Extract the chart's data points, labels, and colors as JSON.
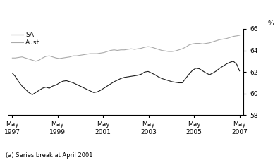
{
  "ylim": [
    58,
    66
  ],
  "yticks": [
    58,
    60,
    62,
    64,
    66
  ],
  "xlim": [
    1997.2,
    2007.55
  ],
  "xtick_positions": [
    1997.37,
    1999.37,
    2001.37,
    2003.37,
    2005.37,
    2007.37
  ],
  "xtick_labels": [
    "May\n1997",
    "May\n1999",
    "May\n2001",
    "May\n2003",
    "May\n2005",
    "May\n2007"
  ],
  "legend_entries": [
    "SA",
    "Aust."
  ],
  "sa_color": "#1a1a1a",
  "aust_color": "#aaaaaa",
  "background_color": "#ffffff",
  "footnote": "(a) Series break at April 2001",
  "percent_label": "%",
  "sa_data": [
    [
      1997.37,
      61.9
    ],
    [
      1997.5,
      61.6
    ],
    [
      1997.65,
      61.1
    ],
    [
      1997.8,
      60.7
    ],
    [
      1997.95,
      60.4
    ],
    [
      1998.1,
      60.1
    ],
    [
      1998.25,
      59.9
    ],
    [
      1998.4,
      60.1
    ],
    [
      1998.55,
      60.3
    ],
    [
      1998.7,
      60.5
    ],
    [
      1998.85,
      60.6
    ],
    [
      1999.0,
      60.5
    ],
    [
      1999.15,
      60.7
    ],
    [
      1999.3,
      60.8
    ],
    [
      1999.45,
      61.0
    ],
    [
      1999.6,
      61.15
    ],
    [
      1999.75,
      61.2
    ],
    [
      1999.9,
      61.1
    ],
    [
      2000.05,
      61.0
    ],
    [
      2000.2,
      60.85
    ],
    [
      2000.35,
      60.7
    ],
    [
      2000.5,
      60.55
    ],
    [
      2000.65,
      60.4
    ],
    [
      2000.8,
      60.25
    ],
    [
      2000.95,
      60.1
    ],
    [
      2001.1,
      60.15
    ],
    [
      2001.25,
      60.3
    ],
    [
      2001.4,
      60.5
    ],
    [
      2001.55,
      60.7
    ],
    [
      2001.7,
      60.9
    ],
    [
      2001.85,
      61.1
    ],
    [
      2002.0,
      61.25
    ],
    [
      2002.15,
      61.4
    ],
    [
      2002.3,
      61.5
    ],
    [
      2002.45,
      61.55
    ],
    [
      2002.6,
      61.6
    ],
    [
      2002.75,
      61.65
    ],
    [
      2002.9,
      61.7
    ],
    [
      2003.05,
      61.8
    ],
    [
      2003.2,
      62.0
    ],
    [
      2003.35,
      62.05
    ],
    [
      2003.5,
      61.9
    ],
    [
      2003.65,
      61.75
    ],
    [
      2003.8,
      61.55
    ],
    [
      2003.95,
      61.4
    ],
    [
      2004.1,
      61.3
    ],
    [
      2004.25,
      61.2
    ],
    [
      2004.4,
      61.1
    ],
    [
      2004.55,
      61.05
    ],
    [
      2004.7,
      61.0
    ],
    [
      2004.85,
      61.0
    ],
    [
      2005.0,
      61.4
    ],
    [
      2005.15,
      61.8
    ],
    [
      2005.3,
      62.15
    ],
    [
      2005.45,
      62.35
    ],
    [
      2005.6,
      62.3
    ],
    [
      2005.75,
      62.1
    ],
    [
      2005.9,
      61.9
    ],
    [
      2006.05,
      61.75
    ],
    [
      2006.2,
      61.9
    ],
    [
      2006.35,
      62.1
    ],
    [
      2006.5,
      62.35
    ],
    [
      2006.65,
      62.55
    ],
    [
      2006.8,
      62.75
    ],
    [
      2006.95,
      62.9
    ],
    [
      2007.1,
      63.0
    ],
    [
      2007.25,
      62.7
    ],
    [
      2007.37,
      62.1
    ]
  ],
  "aust_data": [
    [
      1997.37,
      63.3
    ],
    [
      1997.5,
      63.3
    ],
    [
      1997.65,
      63.35
    ],
    [
      1997.8,
      63.4
    ],
    [
      1997.95,
      63.3
    ],
    [
      1998.1,
      63.2
    ],
    [
      1998.25,
      63.1
    ],
    [
      1998.4,
      63.0
    ],
    [
      1998.55,
      63.1
    ],
    [
      1998.7,
      63.3
    ],
    [
      1998.85,
      63.45
    ],
    [
      1999.0,
      63.5
    ],
    [
      1999.15,
      63.4
    ],
    [
      1999.3,
      63.3
    ],
    [
      1999.45,
      63.25
    ],
    [
      1999.6,
      63.3
    ],
    [
      1999.75,
      63.35
    ],
    [
      1999.9,
      63.4
    ],
    [
      2000.05,
      63.5
    ],
    [
      2000.2,
      63.5
    ],
    [
      2000.35,
      63.55
    ],
    [
      2000.5,
      63.6
    ],
    [
      2000.65,
      63.65
    ],
    [
      2000.8,
      63.7
    ],
    [
      2000.95,
      63.7
    ],
    [
      2001.1,
      63.7
    ],
    [
      2001.25,
      63.75
    ],
    [
      2001.4,
      63.8
    ],
    [
      2001.55,
      63.9
    ],
    [
      2001.7,
      64.0
    ],
    [
      2001.85,
      64.05
    ],
    [
      2002.0,
      64.0
    ],
    [
      2002.15,
      64.05
    ],
    [
      2002.3,
      64.05
    ],
    [
      2002.45,
      64.1
    ],
    [
      2002.6,
      64.15
    ],
    [
      2002.75,
      64.1
    ],
    [
      2002.9,
      64.15
    ],
    [
      2003.05,
      64.2
    ],
    [
      2003.2,
      64.3
    ],
    [
      2003.35,
      64.35
    ],
    [
      2003.5,
      64.3
    ],
    [
      2003.65,
      64.2
    ],
    [
      2003.8,
      64.1
    ],
    [
      2003.95,
      64.0
    ],
    [
      2004.1,
      63.95
    ],
    [
      2004.25,
      63.9
    ],
    [
      2004.4,
      63.9
    ],
    [
      2004.55,
      63.95
    ],
    [
      2004.7,
      64.05
    ],
    [
      2004.85,
      64.15
    ],
    [
      2005.0,
      64.3
    ],
    [
      2005.15,
      64.5
    ],
    [
      2005.3,
      64.6
    ],
    [
      2005.45,
      64.65
    ],
    [
      2005.6,
      64.65
    ],
    [
      2005.75,
      64.6
    ],
    [
      2005.9,
      64.65
    ],
    [
      2006.05,
      64.7
    ],
    [
      2006.2,
      64.8
    ],
    [
      2006.35,
      64.9
    ],
    [
      2006.5,
      65.0
    ],
    [
      2006.65,
      65.05
    ],
    [
      2006.8,
      65.1
    ],
    [
      2006.95,
      65.2
    ],
    [
      2007.1,
      65.3
    ],
    [
      2007.25,
      65.35
    ],
    [
      2007.37,
      65.4
    ]
  ]
}
